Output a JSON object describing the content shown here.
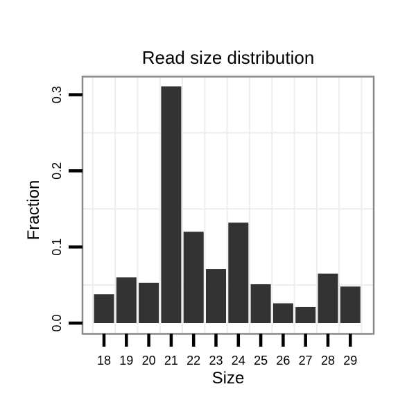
{
  "chart_data": {
    "type": "bar",
    "title": "Read size distribution",
    "xlabel": "Size",
    "ylabel": "Fraction",
    "categories": [
      "18",
      "19",
      "20",
      "21",
      "22",
      "23",
      "24",
      "25",
      "26",
      "27",
      "28",
      "29"
    ],
    "values": [
      0.038,
      0.06,
      0.053,
      0.311,
      0.12,
      0.071,
      0.132,
      0.051,
      0.026,
      0.021,
      0.065,
      0.048
    ],
    "ytick_labels": [
      "0.0",
      "0.1",
      "0.2",
      "0.3"
    ],
    "ylim": [
      0,
      0.324
    ],
    "grid": "on",
    "minor_gridlines_y": [
      0.05,
      0.15,
      0.25
    ],
    "gridlines_x": "between-categories",
    "legend": "none",
    "colors": {
      "bar": "#333333",
      "panel_border": "#888888",
      "gridline": "#ededed",
      "tick": "#000000",
      "text": "#000000",
      "background": "#ffffff"
    }
  }
}
